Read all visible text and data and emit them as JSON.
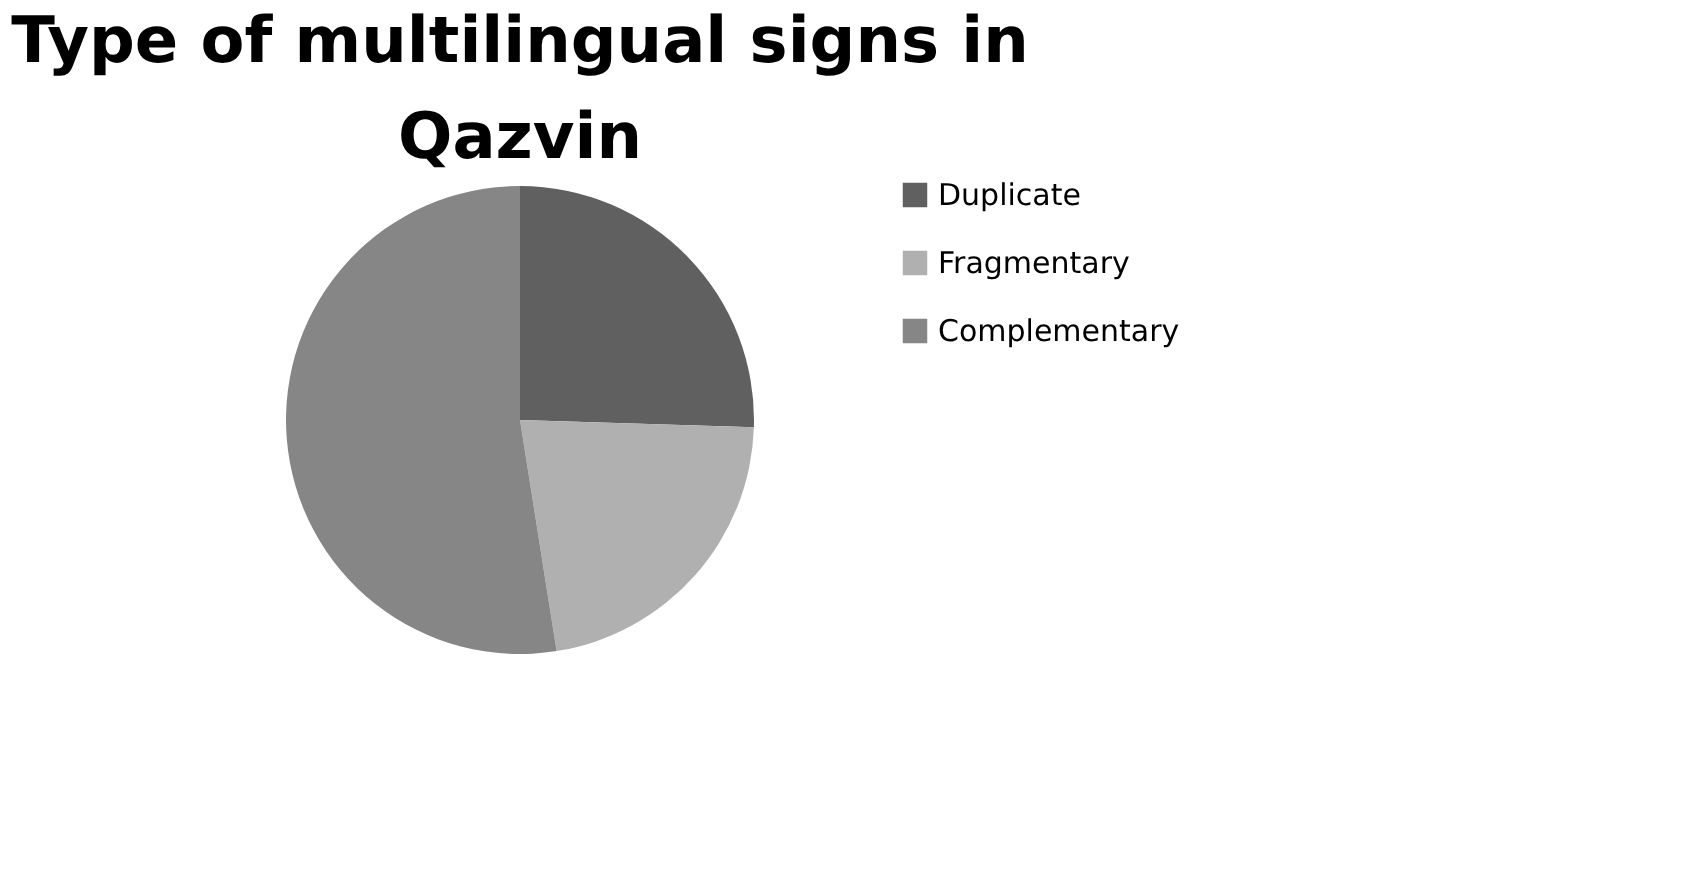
{
  "chart_data": {
    "type": "pie",
    "title": "Type of multilingual signs in Qazvin",
    "categories": [
      "Duplicate",
      "Fragmentary",
      "Complementary"
    ],
    "values": [
      25.5,
      22,
      52.5
    ],
    "colors": [
      "#606060",
      "#b0b0b0",
      "#868686"
    ],
    "legend": "right"
  }
}
